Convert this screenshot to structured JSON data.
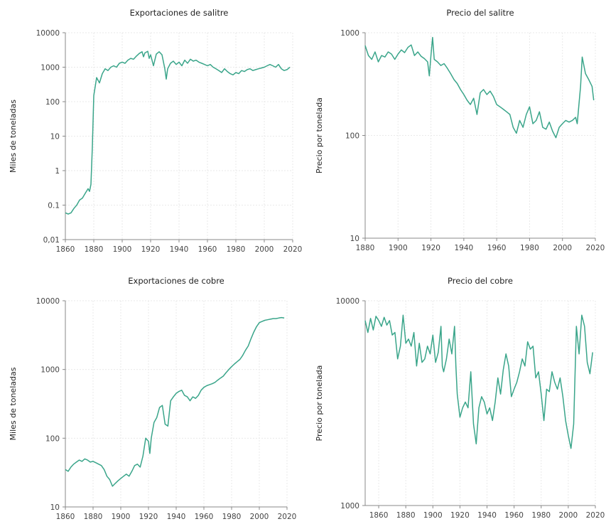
{
  "chart_data": [
    {
      "type": "line",
      "title": "Exportaciones de salitre",
      "ylabel": "Miles de toneladas",
      "xlabel": "",
      "yscale": "log",
      "xlim": [
        1860,
        2020
      ],
      "ylim": [
        0.01,
        10000
      ],
      "x_ticks": [
        "1860",
        "1880",
        "1900",
        "1920",
        "1940",
        "1960",
        "1980",
        "2000",
        "2020"
      ],
      "y_ticks": [
        "0,01",
        "0.1",
        "1",
        "10",
        "100",
        "1000",
        "10000"
      ],
      "grid": true,
      "series": [
        {
          "x": [
            1860,
            1862,
            1864,
            1866,
            1868,
            1870,
            1872,
            1874,
            1876,
            1877,
            1878,
            1879,
            1880,
            1882,
            1884,
            1886,
            1888,
            1890,
            1892,
            1894,
            1896,
            1898,
            1900,
            1902,
            1904,
            1906,
            1908,
            1910,
            1912,
            1914,
            1915,
            1916,
            1918,
            1919,
            1920,
            1922,
            1924,
            1926,
            1928,
            1930,
            1931,
            1932,
            1934,
            1936,
            1938,
            1940,
            1942,
            1944,
            1946,
            1948,
            1950,
            1952,
            1954,
            1956,
            1958,
            1960,
            1962,
            1964,
            1966,
            1968,
            1970,
            1972,
            1974,
            1976,
            1978,
            1980,
            1982,
            1984,
            1986,
            1988,
            1990,
            1992,
            1994,
            1996,
            1998,
            2000,
            2002,
            2004,
            2006,
            2008,
            2010,
            2012,
            2014,
            2016,
            2018
          ],
          "y": [
            0.06,
            0.055,
            0.06,
            0.08,
            0.1,
            0.14,
            0.16,
            0.22,
            0.3,
            0.25,
            0.4,
            5,
            150,
            500,
            350,
            650,
            900,
            800,
            1000,
            1100,
            1000,
            1300,
            1400,
            1300,
            1600,
            1800,
            1700,
            2100,
            2500,
            2800,
            2000,
            2600,
            2900,
            1800,
            2300,
            1100,
            2400,
            2800,
            2300,
            900,
            450,
            900,
            1300,
            1500,
            1200,
            1400,
            1100,
            1600,
            1300,
            1700,
            1500,
            1600,
            1400,
            1300,
            1200,
            1100,
            1200,
            1000,
            900,
            800,
            700,
            900,
            750,
            650,
            600,
            700,
            650,
            800,
            750,
            850,
            900,
            800,
            850,
            900,
            950,
            1000,
            1100,
            1200,
            1100,
            1000,
            1200,
            900,
            800,
            850,
            1000
          ]
        }
      ]
    },
    {
      "type": "line",
      "title": "Precio del salitre",
      "ylabel": "Precio por tonelada",
      "xlabel": "",
      "yscale": "log",
      "xlim": [
        1880,
        2020
      ],
      "ylim": [
        10,
        1000
      ],
      "x_ticks": [
        "1880",
        "1900",
        "1920",
        "1940",
        "1960",
        "1980",
        "2000",
        "2020"
      ],
      "y_ticks": [
        "10",
        "100",
        "1000"
      ],
      "grid": true,
      "series": [
        {
          "x": [
            1880,
            1882,
            1884,
            1886,
            1888,
            1890,
            1892,
            1894,
            1896,
            1898,
            1900,
            1902,
            1904,
            1906,
            1908,
            1910,
            1912,
            1914,
            1916,
            1918,
            1919,
            1920,
            1921,
            1922,
            1924,
            1926,
            1928,
            1930,
            1932,
            1934,
            1936,
            1938,
            1940,
            1942,
            1944,
            1946,
            1948,
            1950,
            1952,
            1954,
            1956,
            1958,
            1960,
            1962,
            1964,
            1966,
            1968,
            1970,
            1972,
            1974,
            1976,
            1978,
            1980,
            1982,
            1984,
            1986,
            1988,
            1990,
            1992,
            1994,
            1996,
            1998,
            2000,
            2002,
            2004,
            2006,
            2008,
            2009,
            2010,
            2011,
            2012,
            2014,
            2016,
            2018,
            2019
          ],
          "y": [
            750,
            600,
            550,
            650,
            520,
            600,
            580,
            650,
            620,
            550,
            620,
            680,
            640,
            720,
            760,
            600,
            650,
            590,
            560,
            520,
            380,
            600,
            900,
            550,
            520,
            480,
            500,
            450,
            400,
            350,
            320,
            280,
            250,
            220,
            200,
            230,
            160,
            260,
            280,
            250,
            270,
            240,
            200,
            190,
            180,
            170,
            160,
            120,
            105,
            140,
            120,
            160,
            190,
            130,
            140,
            170,
            120,
            115,
            135,
            110,
            95,
            120,
            130,
            140,
            135,
            140,
            150,
            130,
            200,
            300,
            580,
            400,
            350,
            300,
            220
          ]
        }
      ]
    },
    {
      "type": "line",
      "title": "Exportaciones de cobre",
      "ylabel": "Miles de toneladas",
      "xlabel": "",
      "yscale": "log",
      "xlim": [
        1860,
        2020
      ],
      "ylim": [
        10,
        10000
      ],
      "x_ticks": [
        "1860",
        "1880",
        "1900",
        "1920",
        "1940",
        "1960",
        "1980",
        "2000",
        "2020"
      ],
      "y_ticks": [
        "10",
        "100",
        "1000",
        "10000"
      ],
      "grid": true,
      "series": [
        {
          "x": [
            1860,
            1862,
            1864,
            1866,
            1868,
            1870,
            1872,
            1874,
            1876,
            1878,
            1880,
            1882,
            1884,
            1886,
            1888,
            1890,
            1892,
            1894,
            1896,
            1898,
            1900,
            1902,
            1904,
            1906,
            1908,
            1910,
            1912,
            1914,
            1916,
            1918,
            1920,
            1921,
            1922,
            1924,
            1926,
            1928,
            1930,
            1932,
            1934,
            1936,
            1938,
            1940,
            1942,
            1944,
            1946,
            1948,
            1950,
            1952,
            1954,
            1956,
            1958,
            1960,
            1962,
            1964,
            1966,
            1968,
            1970,
            1972,
            1974,
            1976,
            1978,
            1980,
            1982,
            1984,
            1986,
            1988,
            1990,
            1992,
            1994,
            1996,
            1998,
            2000,
            2002,
            2004,
            2006,
            2008,
            2010,
            2012,
            2014,
            2016,
            2018
          ],
          "y": [
            35,
            33,
            38,
            42,
            45,
            48,
            46,
            50,
            48,
            45,
            46,
            44,
            42,
            40,
            35,
            28,
            25,
            20,
            22,
            24,
            26,
            28,
            30,
            28,
            33,
            40,
            42,
            38,
            55,
            100,
            90,
            60,
            100,
            170,
            200,
            280,
            300,
            160,
            150,
            350,
            400,
            450,
            480,
            500,
            420,
            400,
            350,
            400,
            380,
            420,
            500,
            550,
            580,
            600,
            620,
            650,
            700,
            750,
            800,
            900,
            1000,
            1100,
            1200,
            1300,
            1400,
            1600,
            1900,
            2200,
            2800,
            3500,
            4200,
            4800,
            5000,
            5200,
            5300,
            5400,
            5500,
            5500,
            5600,
            5700,
            5600
          ]
        }
      ]
    },
    {
      "type": "line",
      "title": "Precio del cobre",
      "ylabel": "Precio por tonelada",
      "xlabel": "",
      "yscale": "log",
      "xlim": [
        1850,
        2020
      ],
      "ylim": [
        1000,
        10000
      ],
      "x_ticks": [
        "1860",
        "1880",
        "1900",
        "1920",
        "1940",
        "1960",
        "1980",
        "2000",
        "2020"
      ],
      "y_ticks": [
        "1000",
        "10000"
      ],
      "grid": true,
      "series": [
        {
          "x": [
            1850,
            1852,
            1854,
            1856,
            1858,
            1860,
            1862,
            1864,
            1866,
            1868,
            1870,
            1872,
            1874,
            1876,
            1878,
            1880,
            1882,
            1884,
            1886,
            1888,
            1890,
            1892,
            1894,
            1896,
            1898,
            1900,
            1902,
            1904,
            1906,
            1907,
            1908,
            1910,
            1912,
            1914,
            1916,
            1917,
            1918,
            1920,
            1922,
            1924,
            1926,
            1928,
            1930,
            1932,
            1934,
            1936,
            1938,
            1940,
            1942,
            1944,
            1946,
            1948,
            1950,
            1952,
            1954,
            1956,
            1958,
            1960,
            1962,
            1964,
            1966,
            1968,
            1970,
            1972,
            1974,
            1976,
            1978,
            1980,
            1982,
            1984,
            1986,
            1988,
            1990,
            1992,
            1994,
            1996,
            1998,
            2000,
            2002,
            2004,
            2006,
            2008,
            2010,
            2012,
            2014,
            2016,
            2018
          ],
          "y": [
            8000,
            7000,
            8200,
            7200,
            8400,
            8000,
            7500,
            8300,
            7600,
            8000,
            6800,
            7000,
            5200,
            6000,
            8500,
            6200,
            6500,
            6000,
            7000,
            4800,
            6200,
            5000,
            5200,
            6000,
            5500,
            6800,
            5000,
            5600,
            7500,
            4800,
            4500,
            5200,
            6500,
            5500,
            7500,
            4800,
            3500,
            2700,
            3000,
            3200,
            3000,
            4500,
            2500,
            2000,
            3000,
            3400,
            3200,
            2800,
            3000,
            2600,
            3200,
            4200,
            3500,
            4600,
            5500,
            4800,
            3400,
            3700,
            4000,
            4500,
            5200,
            4800,
            6300,
            5800,
            6000,
            4200,
            4500,
            3500,
            2600,
            3700,
            3600,
            4500,
            4000,
            3700,
            4200,
            3400,
            2600,
            2200,
            1900,
            2500,
            7500,
            5500,
            8500,
            7500,
            5000,
            4400,
            5600
          ]
        }
      ]
    }
  ]
}
